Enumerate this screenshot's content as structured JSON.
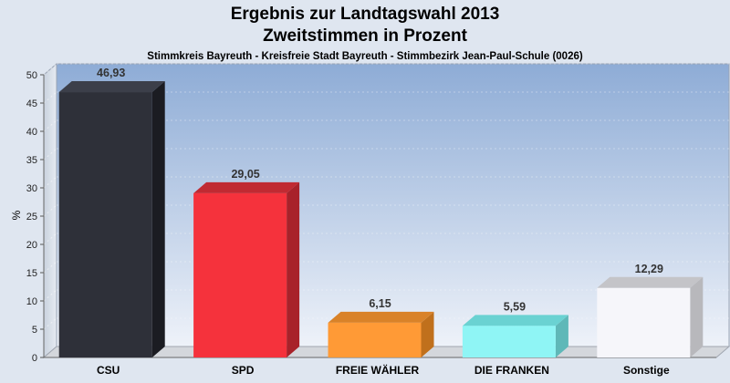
{
  "header": {
    "title": "Ergebnis zur Landtagswahl 2013",
    "subtitle": "Zweitstimmen in Prozent",
    "subsubtitle": "Stimmkreis Bayreuth - Kreisfreie Stadt Bayreuth - Stimmbezirk Jean-Paul-Schule (0026)"
  },
  "chart_data": {
    "type": "bar",
    "title": "Ergebnis zur Landtagswahl 2013",
    "subtitle": "Zweitstimmen in Prozent",
    "xlabel": "",
    "ylabel": "%",
    "ylim": [
      0,
      50
    ],
    "yticks": [
      0,
      5,
      10,
      15,
      20,
      25,
      30,
      35,
      40,
      45,
      50
    ],
    "grid": true,
    "categories": [
      "CSU",
      "SPD",
      "FREIE WÄHLER",
      "DIE FRANKEN",
      "Sonstige"
    ],
    "values": [
      46.93,
      29.05,
      6.15,
      5.59,
      12.29
    ],
    "value_labels": [
      "46,93",
      "29,05",
      "6,15",
      "5,59",
      "12,29"
    ],
    "colors": [
      "#2e3039",
      "#f5323c",
      "#ff9a36",
      "#8ff5f5",
      "#f6f6fa"
    ],
    "side_colors": [
      "#1b1c22",
      "#a8222a",
      "#c0701c",
      "#5fb8b8",
      "#b8b8bc"
    ],
    "top_colors": [
      "#3c3f4a",
      "#c02a32",
      "#d98228",
      "#6ad2d2",
      "#c4c4c8"
    ]
  }
}
